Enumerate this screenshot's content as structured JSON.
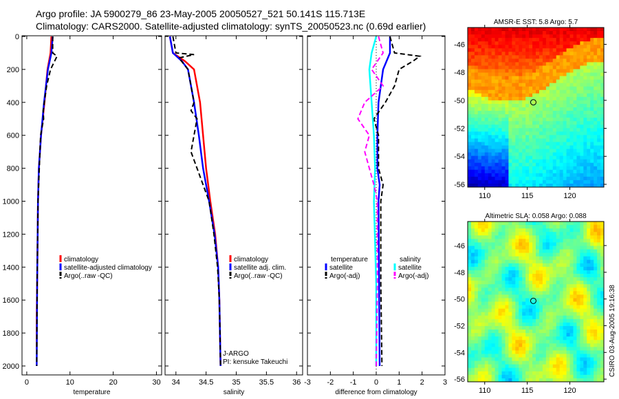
{
  "title_line1": "Argo profile: JA 5900279_86 23-May-2005 20050527_521 50.141S 115.713E",
  "title_line2": "Climatology: CARS2000. Satellite-adjusted climatology: synTS_20050523.nc (0.69d earlier)",
  "side_label": "CSIRO 03-Aug-2005 19:16:38",
  "chart_data": [
    {
      "type": "line",
      "xlabel": "temperature",
      "xlim": [
        -1.1,
        31.2
      ],
      "xticks": [
        0,
        10,
        20,
        30
      ],
      "ylim": [
        0,
        2050
      ],
      "yticks": [
        0,
        200,
        400,
        600,
        800,
        1000,
        1200,
        1400,
        1600,
        1800,
        2000
      ],
      "legend": [
        "climatology",
        "satellite-adjusted climatology",
        "Argo(..raw -QC)"
      ],
      "series": [
        {
          "name": "climatology",
          "color": "#ff0000",
          "dash": false,
          "depth": [
            0,
            100,
            200,
            400,
            600,
            800,
            1000,
            1500,
            1700,
            1900
          ],
          "values": [
            5.7,
            5.5,
            4.8,
            4.1,
            3.3,
            2.8,
            2.6,
            2.4,
            2.3,
            2.3
          ]
        },
        {
          "name": "satellite-adjusted climatology",
          "color": "#0000ff",
          "dash": false,
          "depth": [
            0,
            100,
            200,
            400,
            600,
            800,
            1000,
            1500,
            2000
          ],
          "values": [
            6.0,
            5.7,
            4.9,
            4.0,
            3.3,
            2.8,
            2.6,
            2.4,
            2.3
          ]
        },
        {
          "name": "Argo(..raw -QC)",
          "color": "#000000",
          "dash": true,
          "depth": [
            0,
            100,
            120,
            200,
            300,
            450,
            500,
            600,
            800,
            1000,
            1500,
            2000
          ],
          "values": [
            6.0,
            6.0,
            7.0,
            5.5,
            4.6,
            3.8,
            3.9,
            3.2,
            2.9,
            2.6,
            2.4,
            2.3
          ]
        }
      ]
    },
    {
      "type": "line",
      "xlabel": "salinity",
      "xlim": [
        33.82,
        36.1
      ],
      "xticks": [
        34,
        34.5,
        35,
        35.5,
        36
      ],
      "ylim": [
        0,
        2050
      ],
      "legend": [
        "climatology",
        "satellite adj. clim.",
        "Argo(..raw -QC)"
      ],
      "annotations": [
        "J-ARGO",
        "PI: kensuke Takeuchi"
      ],
      "series": [
        {
          "name": "climatology",
          "color": "#ff0000",
          "dash": false,
          "depth": [
            0,
            100,
            150,
            200,
            400,
            600,
            800,
            1000,
            1200,
            1400,
            1600,
            1800,
            2000
          ],
          "values": [
            33.9,
            33.95,
            34.15,
            34.3,
            34.4,
            34.45,
            34.5,
            34.57,
            34.65,
            34.7,
            34.72,
            34.73,
            34.74
          ]
        },
        {
          "name": "satellite adj. clim.",
          "color": "#0000ff",
          "dash": false,
          "depth": [
            0,
            100,
            150,
            200,
            400,
            600,
            800,
            1000,
            1200,
            1400,
            1600,
            1800,
            2000
          ],
          "values": [
            33.9,
            33.95,
            34.1,
            34.2,
            34.3,
            34.38,
            34.45,
            34.55,
            34.64,
            34.7,
            34.72,
            34.73,
            34.74
          ]
        },
        {
          "name": "Argo(..raw -QC)",
          "color": "#000000",
          "dash": true,
          "depth": [
            0,
            100,
            110,
            130,
            200,
            400,
            450,
            500,
            600,
            700,
            800,
            900,
            1000,
            1200,
            1400,
            1600,
            2000
          ],
          "values": [
            33.95,
            34.0,
            34.3,
            34.05,
            34.2,
            34.3,
            34.25,
            34.35,
            34.3,
            34.25,
            34.35,
            34.45,
            34.55,
            34.63,
            34.69,
            34.72,
            34.74
          ]
        }
      ]
    },
    {
      "type": "line",
      "xlabel": "difference from climatology",
      "xlim": [
        -3,
        3
      ],
      "xticks": [
        -3,
        -2,
        -1,
        0,
        1,
        2,
        3
      ],
      "ylim": [
        0,
        2050
      ],
      "legend_temp": [
        "temperature",
        "satellite",
        "Argo(-adj)"
      ],
      "legend_sal": [
        "salinity",
        "satellite",
        "Argo(-adj)"
      ],
      "series": [
        {
          "name": "temperature satellite",
          "color": "#0000ff",
          "dash": false,
          "depth": [
            0,
            100,
            200,
            400,
            600,
            800,
            900,
            1000,
            2000
          ],
          "values": [
            0.6,
            0.6,
            0.3,
            0.1,
            0.05,
            0.05,
            0.15,
            0.1,
            0.15
          ]
        },
        {
          "name": "temperature Argo(-adj)",
          "color": "#000000",
          "dash": true,
          "depth": [
            0,
            100,
            120,
            150,
            200,
            300,
            400,
            500,
            600,
            800,
            900,
            1000,
            1500,
            2000
          ],
          "values": [
            0.6,
            0.8,
            1.9,
            1.6,
            1.0,
            0.8,
            0.4,
            -0.1,
            0.1,
            0.1,
            0.3,
            0.2,
            0.2,
            0.25
          ]
        },
        {
          "name": "salinity satellite",
          "color": "#00ffff",
          "dash": false,
          "depth": [
            0,
            100,
            200,
            400,
            600,
            800,
            1000,
            1500,
            2000
          ],
          "values": [
            0,
            -0.2,
            -0.3,
            -0.2,
            -0.1,
            -0.05,
            -0.1,
            0,
            0
          ]
        },
        {
          "name": "salinity Argo(-adj)",
          "color": "#ff00ff",
          "dash": true,
          "depth": [
            0,
            100,
            200,
            300,
            400,
            500,
            600,
            700,
            800,
            900,
            1000,
            1500,
            2000
          ],
          "values": [
            0.1,
            0.3,
            -0.2,
            0.3,
            -0.5,
            -0.8,
            -0.3,
            -0.5,
            -0.3,
            -0.1,
            0.05,
            0.05,
            0.0
          ]
        }
      ]
    },
    {
      "type": "heatmap",
      "title": "AMSR-E SST: 5.8 Argo: 5.7",
      "xlim": [
        108,
        124
      ],
      "ylim": [
        -56.2,
        -44.8
      ],
      "xticks": [
        110,
        115,
        120
      ],
      "yticks": [
        -46,
        -48,
        -50,
        -52,
        -54,
        -56
      ],
      "marker": {
        "lon": 115.713,
        "lat": -50.141
      }
    },
    {
      "type": "heatmap",
      "title": "Altimetric SLA: 0.058 Argo: 0.088",
      "xlim": [
        108,
        124
      ],
      "ylim": [
        -56.2,
        -44.2
      ],
      "xticks": [
        110,
        115,
        120
      ],
      "yticks": [
        -46,
        -48,
        -50,
        -52,
        -54,
        -56
      ],
      "marker": {
        "lon": 115.713,
        "lat": -50.141
      }
    }
  ]
}
